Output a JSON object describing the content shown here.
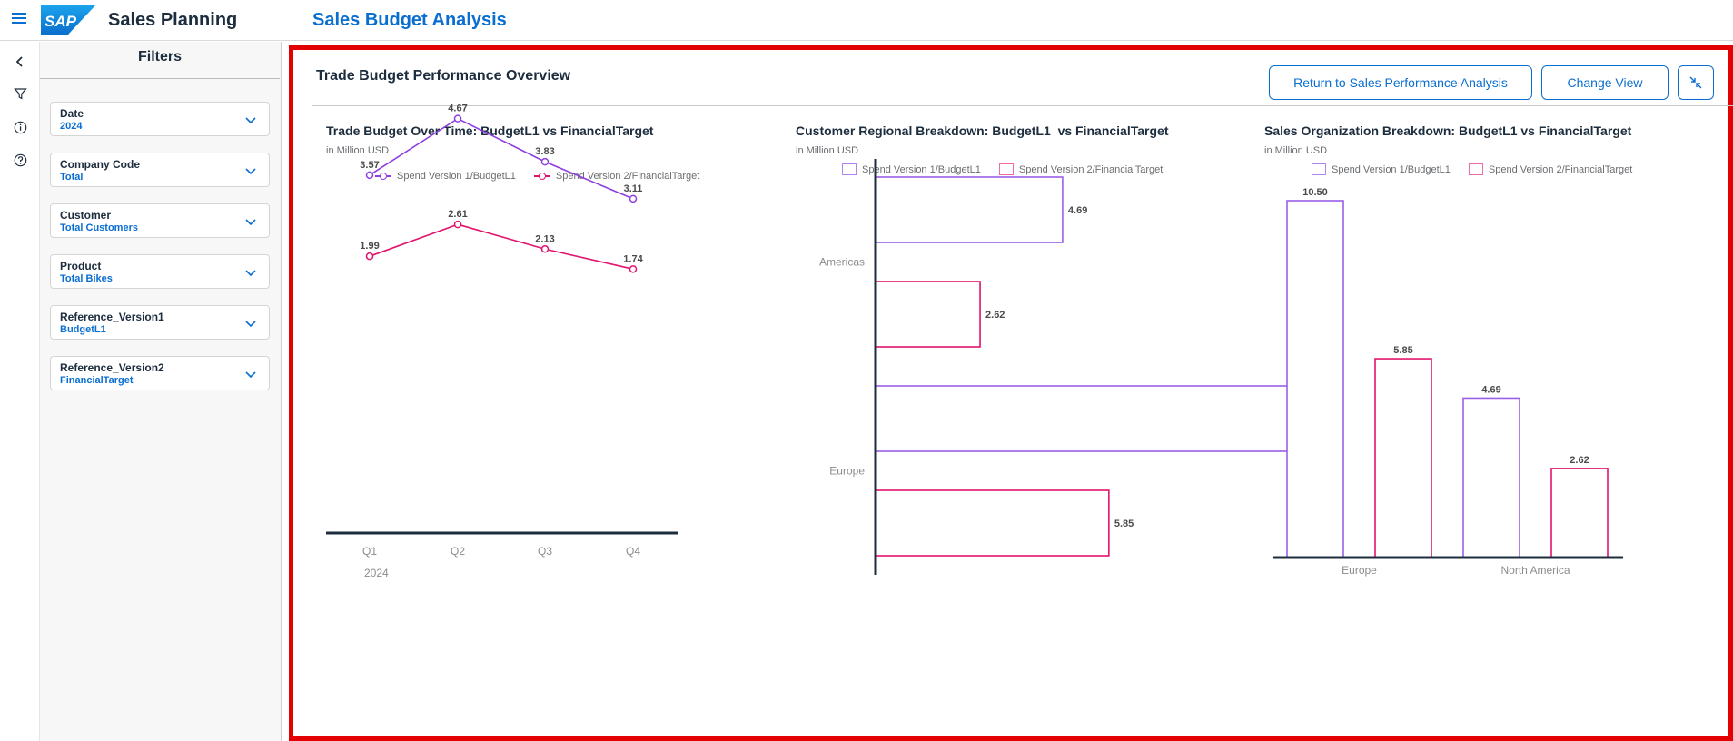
{
  "shell": {
    "app_title": "Sales Planning",
    "page_title": "Sales Budget Analysis",
    "logo_text": "SAP"
  },
  "colors": {
    "accent": "#0a6ed1",
    "series1": "#8f3fe0",
    "series2": "#e2136e",
    "highlight_border": "#e20000"
  },
  "rail": {
    "icons": [
      "collapse-icon",
      "filter-icon",
      "info-icon",
      "help-icon"
    ]
  },
  "filters": {
    "title": "Filters",
    "items": [
      {
        "label": "Date",
        "value": "2024"
      },
      {
        "label": "Company Code",
        "value": "Total"
      },
      {
        "label": "Customer",
        "value": "Total Customers"
      },
      {
        "label": "Product",
        "value": "Total Bikes"
      },
      {
        "label": "Reference_Version1",
        "value": "BudgetL1"
      },
      {
        "label": "Reference_Version2",
        "value": "FinancialTarget"
      }
    ]
  },
  "main": {
    "title": "Trade Budget Performance Overview",
    "buttons": {
      "return_label": "Return to Sales Performance Analysis",
      "change_view_label": "Change View"
    }
  },
  "chart_data": [
    {
      "type": "line",
      "title": "Trade Budget Over Time: BudgetL1 vs FinancialTarget",
      "subtitle": "in Million USD",
      "categories": [
        "Q1",
        "Q2",
        "Q3",
        "Q4"
      ],
      "xlabel": "2024",
      "series": [
        {
          "name": "Spend Version 1/BudgetL1",
          "values": [
            3.57,
            4.67,
            3.83,
            3.11
          ],
          "labels": [
            "3.57",
            "4.67",
            "3.83",
            "3.11"
          ]
        },
        {
          "name": "Spend Version 2/FinancialTarget",
          "values": [
            1.99,
            2.61,
            2.13,
            1.74
          ],
          "labels": [
            "1.99",
            "2.61",
            "2.13",
            "1.74"
          ]
        }
      ],
      "ylim": [
        -3.4,
        5.3
      ],
      "legend": "top-center",
      "grid": false
    },
    {
      "type": "bar",
      "orientation": "horizontal",
      "title": "Customer Regional Breakdown: BudgetL1  vs FinancialTarget",
      "subtitle": "in Million USD",
      "categories": [
        "Americas",
        "Europe"
      ],
      "series": [
        {
          "name": "Spend Version 1/BudgetL1",
          "values": [
            4.69,
            10.5
          ],
          "labels": [
            "4.69",
            "10.50"
          ]
        },
        {
          "name": "Spend Version 2/FinancialTarget",
          "values": [
            2.62,
            5.85
          ],
          "labels": [
            "2.62",
            "5.85"
          ]
        }
      ],
      "xlim": [
        0,
        10.5
      ],
      "legend": "top-center",
      "grid": false
    },
    {
      "type": "bar",
      "orientation": "vertical",
      "title": "Sales Organization Breakdown: BudgetL1 vs FinancialTarget",
      "subtitle": "in Million USD",
      "categories": [
        "Europe",
        "North America"
      ],
      "series": [
        {
          "name": "Spend Version 1/BudgetL1",
          "values": [
            10.5,
            4.69
          ],
          "labels": [
            "10.50",
            "4.69"
          ]
        },
        {
          "name": "Spend Version 2/FinancialTarget",
          "values": [
            5.85,
            2.62
          ],
          "labels": [
            "5.85",
            "2.62"
          ]
        }
      ],
      "ylim": [
        0,
        10.5
      ],
      "legend": "top-center",
      "grid": false
    }
  ]
}
